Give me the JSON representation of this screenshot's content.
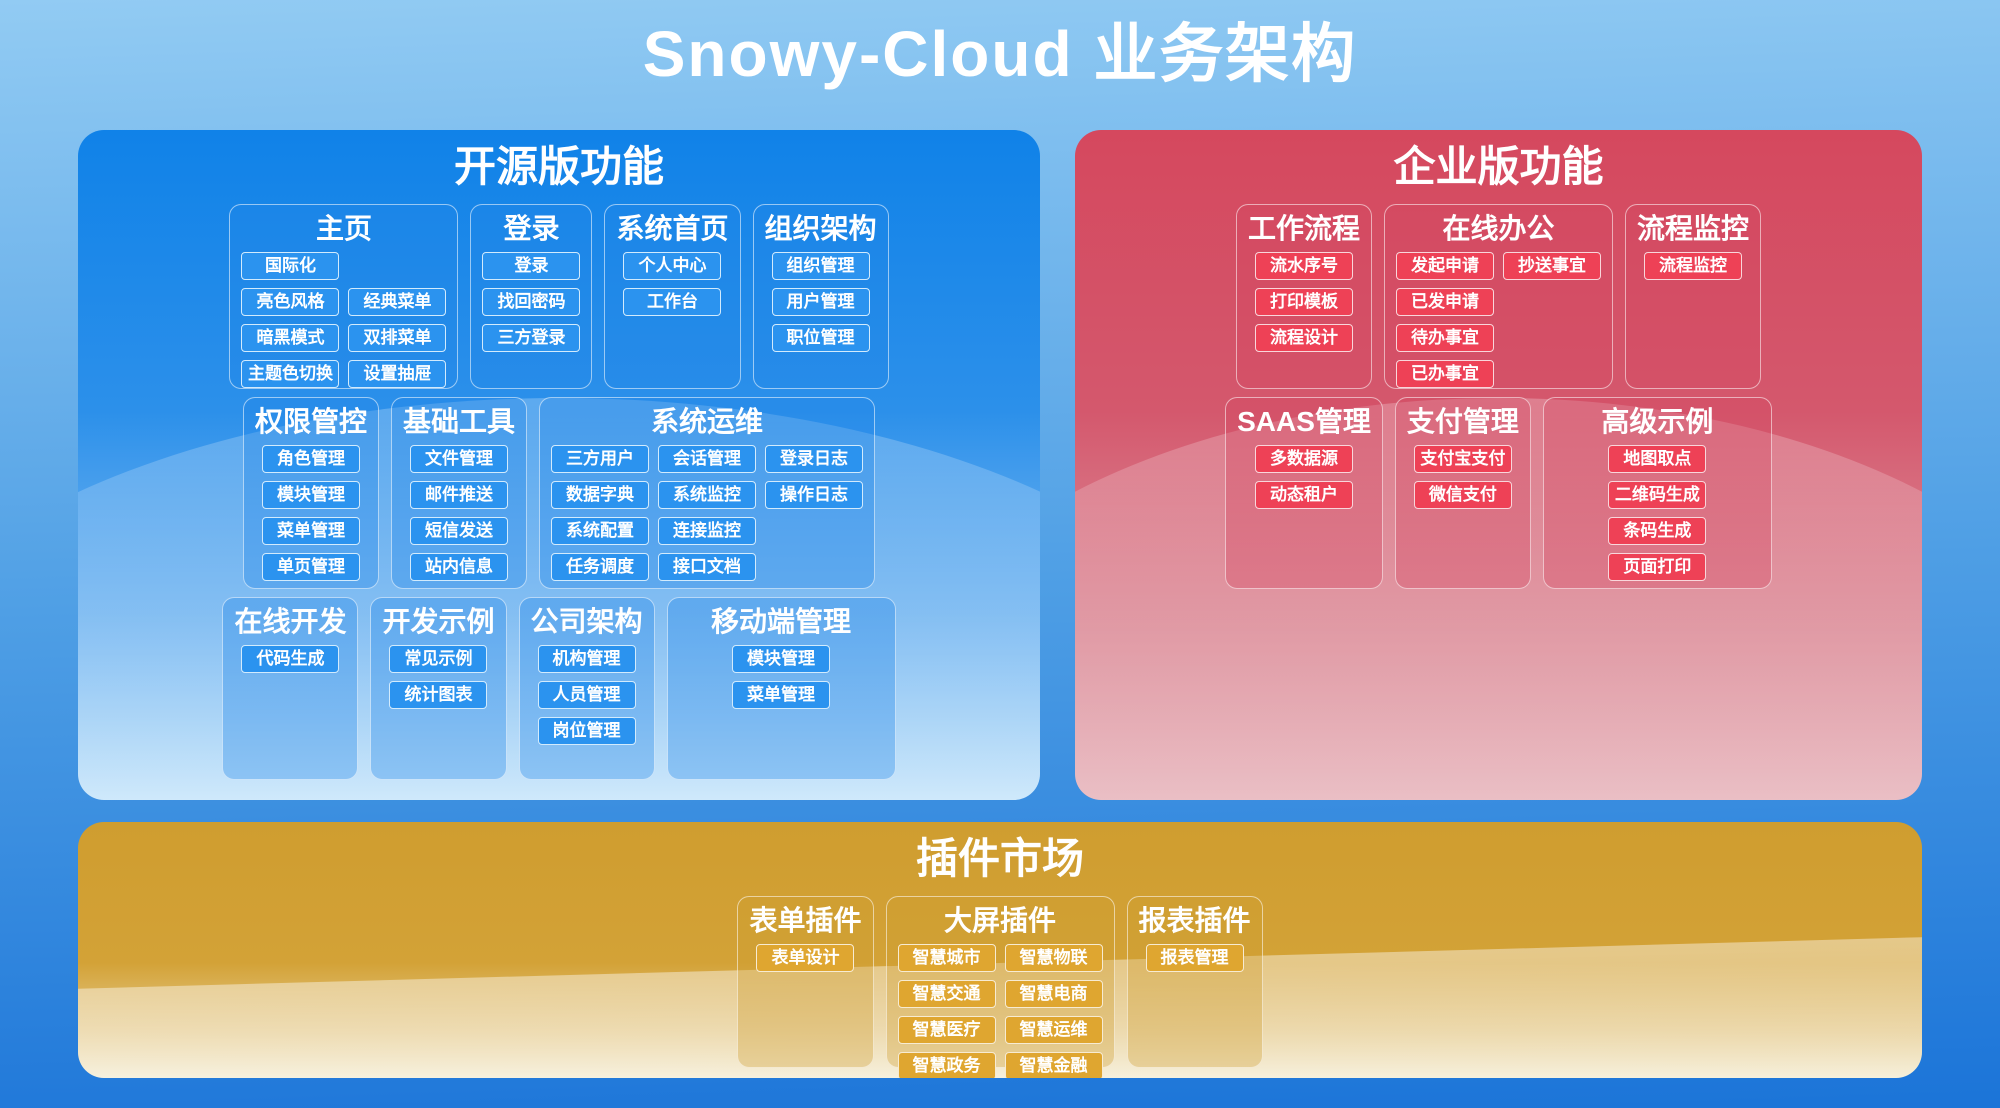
{
  "page_title": "Snowy-Cloud 业务架构",
  "colors": {
    "page_bg_top": "#92cbf3",
    "page_bg_mid": "#4f9fe5",
    "page_bg_bottom": "#1b74d8",
    "blue_top": "#1082e8",
    "blue_bottom": "#cfe9fb",
    "red_top": "#d5485e",
    "red_bottom": "#eabfc5",
    "gold_top": "#cf9d2f",
    "gold_bottom": "#f4ecd2",
    "btn_blue": "#2b93ef",
    "btn_red": "#ee4156",
    "btn_gold": "#dfa630",
    "text_white": "#ffffff"
  },
  "sections": [
    {
      "key": "open-source",
      "title": "开源版功能",
      "theme": "blue",
      "rows": [
        [
          {
            "key": "home",
            "title": "主页",
            "span": 2,
            "item_rows": [
              [
                "国际化"
              ],
              [
                "亮色风格",
                "经典菜单"
              ],
              [
                "暗黑模式",
                "双排菜单"
              ],
              [
                "主题色切换",
                "设置抽屉"
              ]
            ]
          },
          {
            "key": "login",
            "title": "登录",
            "span": 1,
            "item_rows": [
              [
                "登录"
              ],
              [
                "找回密码"
              ],
              [
                "三方登录"
              ]
            ]
          },
          {
            "key": "system-home",
            "title": "系统首页",
            "span": 1,
            "item_rows": [
              [
                "个人中心"
              ],
              [
                "工作台"
              ]
            ]
          },
          {
            "key": "org-structure",
            "title": "组织架构",
            "span": 1,
            "item_rows": [
              [
                "组织管理"
              ],
              [
                "用户管理"
              ],
              [
                "职位管理"
              ]
            ]
          }
        ],
        [
          {
            "key": "permission-control",
            "title": "权限管控",
            "span": 1,
            "item_rows": [
              [
                "角色管理"
              ],
              [
                "模块管理"
              ],
              [
                "菜单管理"
              ],
              [
                "单页管理"
              ]
            ]
          },
          {
            "key": "basic-tools",
            "title": "基础工具",
            "span": 1,
            "item_rows": [
              [
                "文件管理"
              ],
              [
                "邮件推送"
              ],
              [
                "短信发送"
              ],
              [
                "站内信息"
              ]
            ]
          },
          {
            "key": "system-ops",
            "title": "系统运维",
            "span": 3,
            "item_rows": [
              [
                "三方用户",
                "会话管理",
                "登录日志"
              ],
              [
                "数据字典",
                "系统监控",
                "操作日志"
              ],
              [
                "系统配置",
                "连接监控"
              ],
              [
                "任务调度",
                "接口文档"
              ]
            ]
          }
        ],
        [
          {
            "key": "online-dev",
            "title": "在线开发",
            "span": 1,
            "item_rows": [
              [
                "代码生成"
              ]
            ]
          },
          {
            "key": "dev-examples",
            "title": "开发示例",
            "span": 1,
            "item_rows": [
              [
                "常见示例"
              ],
              [
                "统计图表"
              ]
            ]
          },
          {
            "key": "company-structure",
            "title": "公司架构",
            "span": 1,
            "item_rows": [
              [
                "机构管理"
              ],
              [
                "人员管理"
              ],
              [
                "岗位管理"
              ]
            ]
          },
          {
            "key": "mobile-management",
            "title": "移动端管理",
            "span": 2,
            "center": true,
            "item_rows": [
              [
                "模块管理"
              ],
              [
                "菜单管理"
              ]
            ]
          }
        ]
      ]
    },
    {
      "key": "enterprise",
      "title": "企业版功能",
      "theme": "red",
      "rows": [
        [
          {
            "key": "workflow",
            "title": "工作流程",
            "span": 1,
            "item_rows": [
              [
                "流水序号"
              ],
              [
                "打印模板"
              ],
              [
                "流程设计"
              ]
            ]
          },
          {
            "key": "online-office",
            "title": "在线办公",
            "span": 2,
            "item_rows": [
              [
                "发起申请",
                "抄送事宜"
              ],
              [
                "已发申请"
              ],
              [
                "待办事宜"
              ],
              [
                "已办事宜"
              ]
            ]
          },
          {
            "key": "process-monitor",
            "title": "流程监控",
            "span": 1,
            "item_rows": [
              [
                "流程监控"
              ]
            ]
          }
        ],
        [
          {
            "key": "saas-management",
            "title": "SAAS管理",
            "span": 1,
            "item_rows": [
              [
                "多数据源"
              ],
              [
                "动态租户"
              ]
            ]
          },
          {
            "key": "payment-management",
            "title": "支付管理",
            "span": 1,
            "item_rows": [
              [
                "支付宝支付"
              ],
              [
                "微信支付"
              ]
            ]
          },
          {
            "key": "advanced-examples",
            "title": "高级示例",
            "span": 2,
            "center": true,
            "item_rows": [
              [
                "地图取点"
              ],
              [
                "二维码生成"
              ],
              [
                "条码生成"
              ],
              [
                "页面打印"
              ]
            ]
          }
        ]
      ]
    },
    {
      "key": "plugin-market",
      "title": "插件市场",
      "theme": "gold",
      "rows": [
        [
          {
            "key": "form-plugin",
            "title": "表单插件",
            "span": 1,
            "item_rows": [
              [
                "表单设计"
              ]
            ]
          },
          {
            "key": "bigscreen-plugin",
            "title": "大屏插件",
            "span": 2,
            "item_rows": [
              [
                "智慧城市",
                "智慧物联"
              ],
              [
                "智慧交通",
                "智慧电商"
              ],
              [
                "智慧医疗",
                "智慧运维"
              ],
              [
                "智慧政务",
                "智慧金融"
              ]
            ]
          },
          {
            "key": "report-plugin",
            "title": "报表插件",
            "span": 1,
            "item_rows": [
              [
                "报表管理"
              ]
            ]
          }
        ]
      ]
    }
  ]
}
